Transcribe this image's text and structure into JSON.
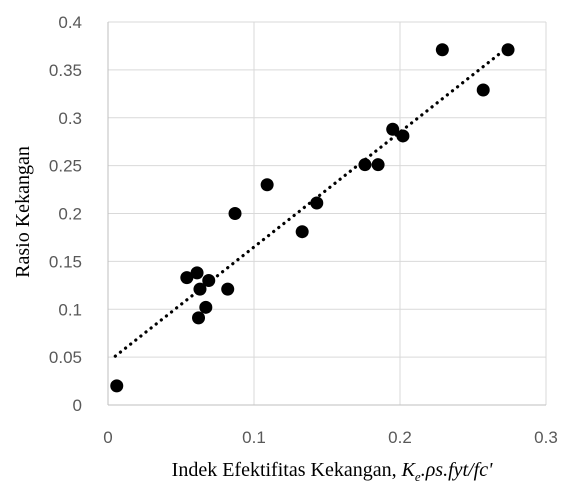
{
  "chart_data": {
    "type": "scatter",
    "xlabel_prefix": "Indek Efektifitas Kekangan, ",
    "xlabel_symbol": "K",
    "xlabel_subscript": "e",
    "xlabel_suffix": ".ρs.fyt/fc'",
    "ylabel": "Rasio Kekangan",
    "xlim": [
      0,
      0.3
    ],
    "ylim": [
      0,
      0.4
    ],
    "x_ticks": [
      0,
      0.1,
      0.2,
      0.3
    ],
    "x_tick_labels": [
      "0",
      "0.1",
      "0.2",
      "0.3"
    ],
    "y_ticks": [
      0,
      0.05,
      0.1,
      0.15,
      0.2,
      0.25,
      0.3,
      0.35,
      0.4
    ],
    "y_tick_labels": [
      "0",
      "0.05",
      "0.1",
      "0.15",
      "0.2",
      "0.25",
      "0.3",
      "0.35",
      "0.4"
    ],
    "grid": true,
    "legend": false,
    "marker_color": "#000000",
    "series": [
      {
        "points": [
          [
            0.006,
            0.02
          ],
          [
            0.054,
            0.133
          ],
          [
            0.061,
            0.138
          ],
          [
            0.062,
            0.091
          ],
          [
            0.063,
            0.121
          ],
          [
            0.067,
            0.102
          ],
          [
            0.069,
            0.13
          ],
          [
            0.082,
            0.121
          ],
          [
            0.087,
            0.2
          ],
          [
            0.109,
            0.23
          ],
          [
            0.133,
            0.181
          ],
          [
            0.143,
            0.211
          ],
          [
            0.176,
            0.251
          ],
          [
            0.185,
            0.251
          ],
          [
            0.195,
            0.288
          ],
          [
            0.202,
            0.281
          ],
          [
            0.229,
            0.371
          ],
          [
            0.257,
            0.329
          ],
          [
            0.274,
            0.371
          ]
        ]
      }
    ],
    "trendline": {
      "style": "dotted",
      "from": [
        0.005,
        0.051
      ],
      "to": [
        0.275,
        0.375
      ]
    }
  }
}
